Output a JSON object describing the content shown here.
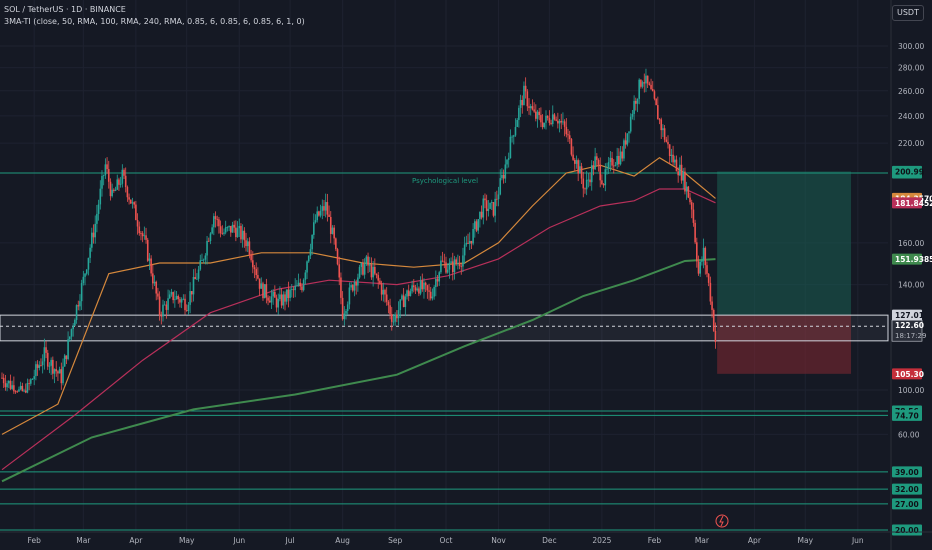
{
  "header": {
    "symbol": "SOL / TetherUS · 1D · BINANCE",
    "indicator": "3MA-TI (close, 50, RMA, 100, RMA, 240, RMA, 0.85, 6, 0.85, 6, 0.85, 6, 1, 0)"
  },
  "currency": "USDT",
  "colors": {
    "background": "#151924",
    "grid": "#1e2230",
    "up": "#26a69a",
    "down": "#ef5350",
    "level": "#1e9a7e",
    "ma_fast": "#d5883c",
    "ma_mid": "#b8305a",
    "ma_slow": "#3f8a4e"
  },
  "chart_data": {
    "type": "candlestick",
    "ylim": [
      20,
      305
    ],
    "y_ticks": [
      "300.00",
      "280.00",
      "260.00",
      "240.00",
      "220.00",
      "160.00",
      "140.00",
      "100.00",
      "60.00"
    ],
    "x_ticks": [
      {
        "label": "Feb",
        "day": 26
      },
      {
        "label": "Mar",
        "day": 55
      },
      {
        "label": "Apr",
        "day": 86
      },
      {
        "label": "May",
        "day": 116
      },
      {
        "label": "Jun",
        "day": 147
      },
      {
        "label": "Jul",
        "day": 177
      },
      {
        "label": "Aug",
        "day": 208
      },
      {
        "label": "Sep",
        "day": 239
      },
      {
        "label": "Oct",
        "day": 269
      },
      {
        "label": "Nov",
        "day": 300
      },
      {
        "label": "Dec",
        "day": 330
      },
      {
        "label": "2025",
        "day": 361
      },
      {
        "label": "Feb",
        "day": 392
      },
      {
        "label": "Mar",
        "day": 420
      },
      {
        "label": "Apr",
        "day": 451
      },
      {
        "label": "May",
        "day": 481
      },
      {
        "label": "Jun",
        "day": 512
      }
    ],
    "x_range_days": [
      7,
      531
    ],
    "price_path": [
      [
        7,
        104
      ],
      [
        20,
        98
      ],
      [
        32,
        112
      ],
      [
        42,
        104
      ],
      [
        55,
        142
      ],
      [
        62,
        170
      ],
      [
        68,
        205
      ],
      [
        72,
        185
      ],
      [
        78,
        198
      ],
      [
        84,
        180
      ],
      [
        92,
        158
      ],
      [
        100,
        128
      ],
      [
        108,
        135
      ],
      [
        116,
        132
      ],
      [
        125,
        150
      ],
      [
        132,
        175
      ],
      [
        137,
        165
      ],
      [
        144,
        168
      ],
      [
        152,
        160
      ],
      [
        160,
        138
      ],
      [
        170,
        132
      ],
      [
        177,
        136
      ],
      [
        184,
        140
      ],
      [
        192,
        172
      ],
      [
        198,
        180
      ],
      [
        203,
        160
      ],
      [
        208,
        128
      ],
      [
        215,
        142
      ],
      [
        222,
        150
      ],
      [
        230,
        140
      ],
      [
        238,
        125
      ],
      [
        245,
        135
      ],
      [
        252,
        140
      ],
      [
        260,
        135
      ],
      [
        266,
        150
      ],
      [
        272,
        148
      ],
      [
        278,
        152
      ],
      [
        285,
        165
      ],
      [
        291,
        180
      ],
      [
        297,
        178
      ],
      [
        303,
        200
      ],
      [
        309,
        230
      ],
      [
        315,
        258
      ],
      [
        321,
        240
      ],
      [
        327,
        235
      ],
      [
        333,
        242
      ],
      [
        339,
        230
      ],
      [
        345,
        210
      ],
      [
        351,
        190
      ],
      [
        357,
        208
      ],
      [
        362,
        195
      ],
      [
        367,
        208
      ],
      [
        373,
        212
      ],
      [
        380,
        250
      ],
      [
        385,
        272
      ],
      [
        390,
        258
      ],
      [
        396,
        232
      ],
      [
        402,
        210
      ],
      [
        408,
        200
      ],
      [
        414,
        180
      ],
      [
        418,
        145
      ],
      [
        421,
        155
      ],
      [
        425,
        135
      ],
      [
        428,
        117
      ]
    ],
    "moving_averages": [
      {
        "name": "MA 50",
        "color": "#d5883c",
        "last_label": "184.3570",
        "points": [
          [
            7,
            60
          ],
          [
            40,
            85
          ],
          [
            70,
            145
          ],
          [
            100,
            150
          ],
          [
            130,
            150
          ],
          [
            160,
            155
          ],
          [
            190,
            155
          ],
          [
            220,
            150
          ],
          [
            250,
            148
          ],
          [
            280,
            150
          ],
          [
            300,
            160
          ],
          [
            320,
            180
          ],
          [
            340,
            200
          ],
          [
            360,
            205
          ],
          [
            380,
            198
          ],
          [
            395,
            210
          ],
          [
            410,
            200
          ],
          [
            428,
            184.4
          ]
        ]
      },
      {
        "name": "MA 100",
        "color": "#b8305a",
        "last_label": "181.8452",
        "points": [
          [
            7,
            40
          ],
          [
            50,
            75
          ],
          [
            90,
            110
          ],
          [
            130,
            128
          ],
          [
            170,
            138
          ],
          [
            200,
            142
          ],
          [
            240,
            140
          ],
          [
            270,
            144
          ],
          [
            300,
            152
          ],
          [
            330,
            168
          ],
          [
            360,
            180
          ],
          [
            380,
            183
          ],
          [
            395,
            190
          ],
          [
            410,
            190
          ],
          [
            428,
            181.8
          ]
        ]
      },
      {
        "name": "MA 240",
        "color": "#3f8a4e",
        "last_label": "151.9385",
        "points": [
          [
            7,
            35
          ],
          [
            60,
            58
          ],
          [
            120,
            80
          ],
          [
            180,
            95
          ],
          [
            240,
            105
          ],
          [
            280,
            115
          ],
          [
            320,
            125
          ],
          [
            350,
            135
          ],
          [
            380,
            142
          ],
          [
            410,
            151
          ],
          [
            428,
            151.9
          ]
        ]
      }
    ],
    "levels": [
      {
        "price": 200.0,
        "label": "200.00",
        "annotation": "Psychological level"
      },
      {
        "price": 78.56,
        "label": "78.56"
      },
      {
        "price": 74.7,
        "label": "74.70"
      },
      {
        "price": 39.0,
        "label": "39.00"
      },
      {
        "price": 32.0,
        "label": "32.00"
      },
      {
        "price": 27.0,
        "label": "27.00"
      },
      {
        "price": 20.0,
        "label": "20.00"
      }
    ],
    "zone": {
      "top": 127.01,
      "bottom": 117,
      "label": "127.01"
    },
    "long_position": {
      "entry": 127.01,
      "target": 200.99,
      "stop": 105.3,
      "target_label": "200.99",
      "stop_label": "105.30",
      "start_day": 429,
      "end_day": 508
    },
    "current_price": {
      "price": 122.6,
      "label": "122.60",
      "countdown": "18:17:29"
    }
  }
}
